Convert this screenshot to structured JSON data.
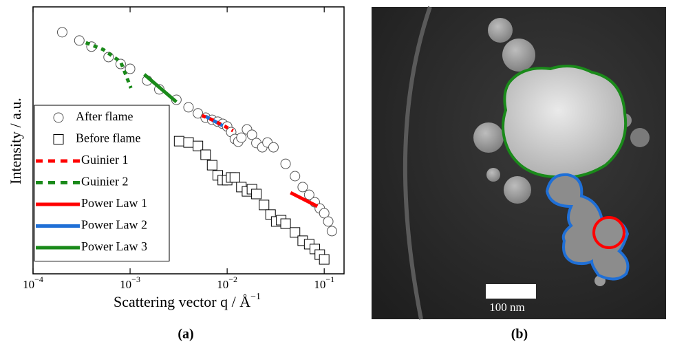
{
  "chart_data": {
    "type": "scatter",
    "caption": "(a)",
    "xlabel": "Scattering vector q / Å",
    "xlabel_superscript": "−1",
    "ylabel": "Intensity / a.u.",
    "xscale": "log",
    "xlim": [
      0.0001,
      0.16
    ],
    "ylim": [
      0,
      100
    ],
    "xticks": [
      {
        "value": 0.0001,
        "label": "10",
        "exponent": "−4"
      },
      {
        "value": 0.001,
        "label": "10",
        "exponent": "−3"
      },
      {
        "value": 0.01,
        "label": "10",
        "exponent": "−2"
      },
      {
        "value": 0.1,
        "label": "10",
        "exponent": "−1"
      }
    ],
    "legend": "lower left",
    "series": [
      {
        "name": "After flame",
        "marker": "circle",
        "color": "#555555",
        "x": [
          0.0002,
          0.0003,
          0.0004,
          0.0006,
          0.0008,
          0.001,
          0.0015,
          0.002,
          0.003,
          0.004,
          0.005,
          0.006,
          0.007,
          0.008,
          0.009,
          0.01,
          0.011,
          0.012,
          0.013,
          0.014,
          0.016,
          0.018,
          0.02,
          0.023,
          0.026,
          0.03,
          0.04,
          0.05,
          0.06,
          0.07,
          0.08,
          0.09,
          0.1,
          0.11,
          0.12
        ],
        "values": [
          90.5,
          87.4,
          85.1,
          81.2,
          78.6,
          76.8,
          72.4,
          69.1,
          65.2,
          62.4,
          60.1,
          58.5,
          57.7,
          57.0,
          56.2,
          55.2,
          53.1,
          50.5,
          49.5,
          51.0,
          54.1,
          52.1,
          49.0,
          47.4,
          49.2,
          47.4,
          41.2,
          36.6,
          32.5,
          29.6,
          26.8,
          24.5,
          22.7,
          19.6,
          16.0
        ]
      },
      {
        "name": "Before flame",
        "marker": "square",
        "color": "#000000",
        "x": [
          0.0032,
          0.004,
          0.005,
          0.006,
          0.007,
          0.008,
          0.009,
          0.01,
          0.011,
          0.012,
          0.014,
          0.016,
          0.018,
          0.02,
          0.024,
          0.028,
          0.032,
          0.036,
          0.04,
          0.05,
          0.06,
          0.07,
          0.08,
          0.09,
          0.1
        ],
        "values": [
          49.7,
          49.2,
          47.9,
          44.6,
          40.7,
          36.9,
          35.1,
          35.1,
          36.1,
          36.1,
          32.5,
          30.9,
          31.7,
          29.9,
          25.8,
          22.2,
          19.6,
          20.1,
          18.8,
          15.5,
          12.4,
          11.1,
          9.3,
          7.2,
          5.4
        ]
      },
      {
        "name": "Guinier 1",
        "marker": "line",
        "dash": true,
        "color": "#ff0000",
        "x": [
          0.0055,
          0.007,
          0.009,
          0.0115
        ],
        "values": [
          59.3,
          57.7,
          55.7,
          53.6
        ]
      },
      {
        "name": "Guinier 2",
        "marker": "line",
        "dash": true,
        "color": "#1a8a1a",
        "x": [
          0.00035,
          0.00053,
          0.0008,
          0.00094,
          0.00102
        ],
        "values": [
          86.6,
          84.0,
          79.4,
          72.9,
          69.6
        ]
      },
      {
        "name": "Power Law 1",
        "marker": "line",
        "dash": false,
        "color": "#ff0000",
        "x": [
          0.045,
          0.085
        ],
        "values": [
          30.4,
          25.3
        ]
      },
      {
        "name": "Power Law 2",
        "marker": "line",
        "dash": false,
        "color": "#1f6fd6",
        "x": [
          0.006,
          0.009
        ],
        "values": [
          59.0,
          55.5
        ]
      },
      {
        "name": "Power Law 3",
        "marker": "line",
        "dash": false,
        "color": "#1a8a1a",
        "x": [
          0.0014,
          0.003
        ],
        "values": [
          74.7,
          64.4
        ]
      }
    ]
  },
  "image_panel": {
    "scale_bar_label": "100 nm",
    "caption": "(b)"
  }
}
